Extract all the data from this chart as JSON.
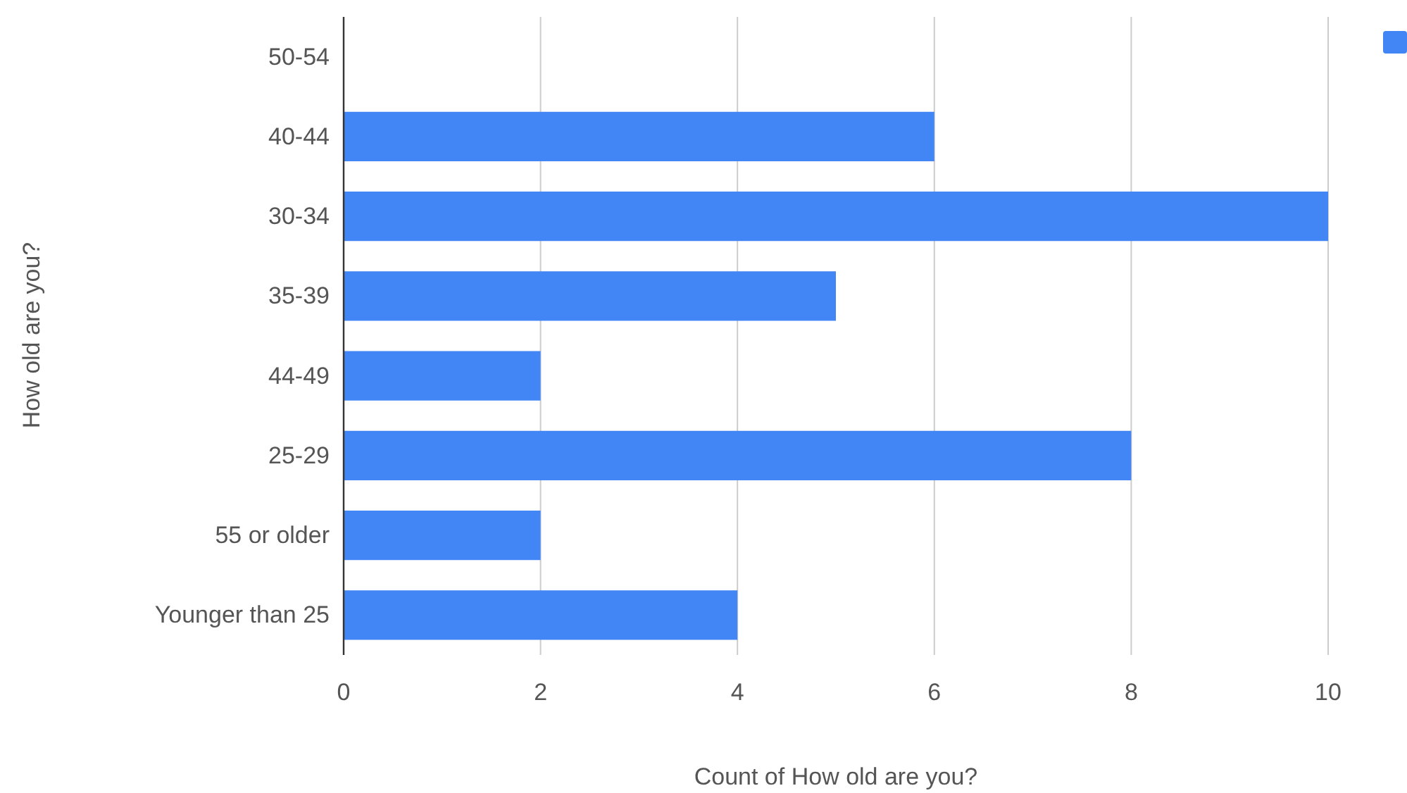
{
  "chart_data": {
    "type": "bar",
    "orientation": "horizontal",
    "categories": [
      "50-54",
      "40-44",
      "30-34",
      "35-39",
      "44-49",
      "25-29",
      "55 or older",
      "Younger than 25"
    ],
    "series": [
      {
        "color": "#4285f4",
        "values": [
          0,
          6,
          10,
          5,
          2,
          8,
          2,
          4
        ]
      }
    ],
    "xlabel": "Count of How old are you?",
    "ylabel": "How old are you?",
    "xlim": [
      0,
      10
    ],
    "xticks": [
      0,
      2,
      4,
      6,
      8,
      10
    ],
    "grid": "x"
  }
}
